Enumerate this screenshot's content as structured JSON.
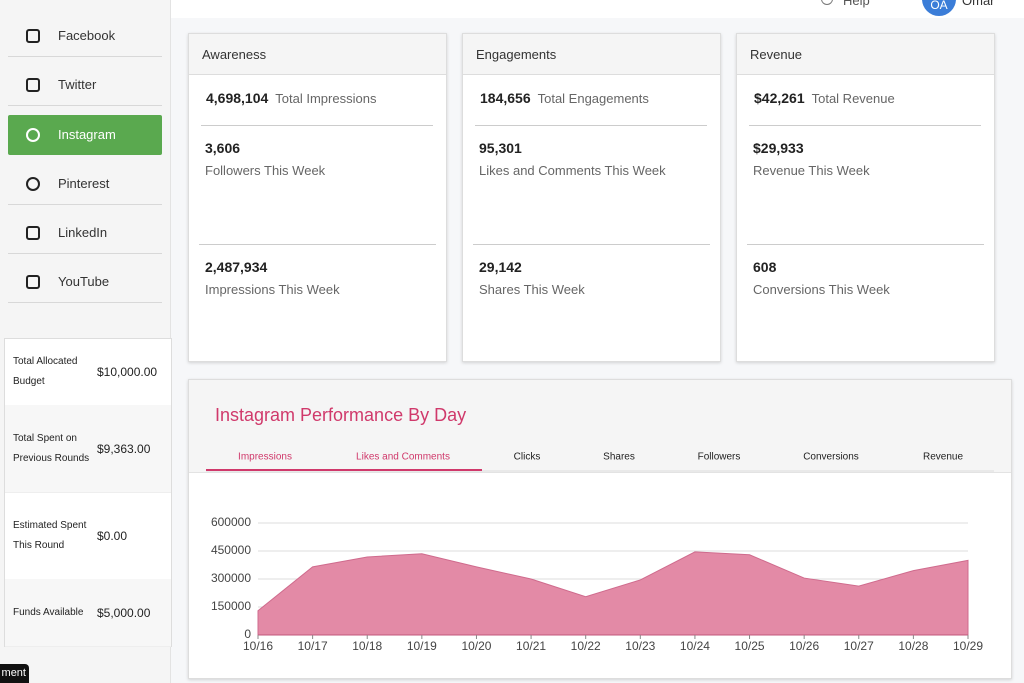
{
  "header": {
    "help": "Help",
    "avatar": "OA",
    "user": "Omar"
  },
  "nav": [
    "Facebook",
    "Twitter",
    "Instagram",
    "Pinterest",
    "LinkedIn",
    "YouTube"
  ],
  "budget": [
    {
      "label": "Total Allocated Budget",
      "value": "$10,000.00"
    },
    {
      "label": "Total Spent on Previous Rounds",
      "value": "$9,363.00"
    },
    {
      "label": "Estimated Spent This Round",
      "value": "$0.00"
    },
    {
      "label": "Funds Available",
      "value": "$5,000.00"
    }
  ],
  "cards": [
    {
      "title": "Awareness",
      "total": "4,698,104",
      "total_label": "Total Impressions",
      "metrics": [
        {
          "value": "3,606",
          "label": "Followers This Week"
        },
        {
          "value": "2,487,934",
          "label": "Impressions This Week"
        }
      ]
    },
    {
      "title": "Engagements",
      "total": "184,656",
      "total_label": "Total Engagements",
      "metrics": [
        {
          "value": "95,301",
          "label": "Likes and Comments This Week"
        },
        {
          "value": "29,142",
          "label": "Shares This Week"
        }
      ]
    },
    {
      "title": "Revenue",
      "total": "$42,261",
      "total_label": "Total Revenue",
      "metrics": [
        {
          "value": "$29,933",
          "label": "Revenue This Week"
        },
        {
          "value": "608",
          "label": "Conversions This Week"
        }
      ]
    }
  ],
  "tooltip": "ment",
  "chart_data": {
    "type": "area",
    "title": "Instagram Performance By Day",
    "tabs": [
      "Impressions",
      "Likes and Comments",
      "Clicks",
      "Shares",
      "Followers",
      "Conversions",
      "Revenue"
    ],
    "categories": [
      "10/16",
      "10/17",
      "10/18",
      "10/19",
      "10/20",
      "10/21",
      "10/22",
      "10/23",
      "10/24",
      "10/25",
      "10/26",
      "10/27",
      "10/28",
      "10/29"
    ],
    "values": [
      130000,
      365000,
      418000,
      435000,
      365000,
      300000,
      205000,
      295000,
      445000,
      430000,
      305000,
      262000,
      345000,
      400000
    ],
    "color": "#e38aa6",
    "ylim": [
      0,
      600000
    ],
    "yticks": [
      0,
      150000,
      300000,
      450000,
      600000
    ],
    "grid": true
  }
}
